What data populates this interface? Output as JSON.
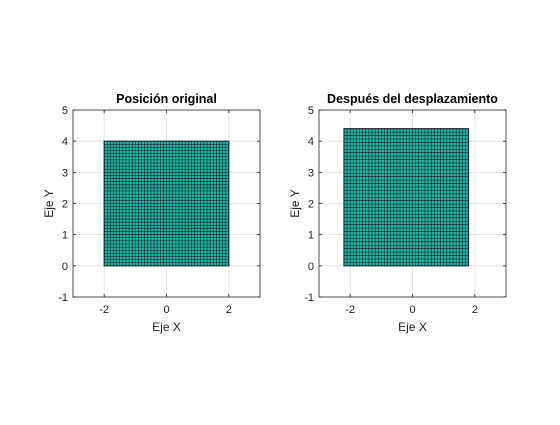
{
  "colors": {
    "background": "#ffffff",
    "axis": "#262626",
    "grid": "#dfdfdf",
    "patch_fill": "#22b3a6",
    "patch_edge": "#0d1a1a"
  },
  "chart_data": [
    {
      "type": "patch-mesh",
      "title": "Posición original",
      "xlabel": "Eje X",
      "ylabel": "Eje Y",
      "xlim": [
        -3,
        3
      ],
      "ylim": [
        -1,
        5
      ],
      "xticks": [
        "-2",
        "0",
        "2"
      ],
      "xtick_values": [
        -2,
        0,
        2
      ],
      "yticks": [
        "-1",
        "0",
        "1",
        "2",
        "3",
        "4",
        "5"
      ],
      "ytick_values": [
        -1,
        0,
        1,
        2,
        3,
        4,
        5
      ],
      "grid": true,
      "patch": {
        "x_min": -2,
        "x_max": 2,
        "y_min": 0,
        "y_max": 4,
        "nx": 40,
        "ny": 40
      }
    },
    {
      "type": "patch-mesh",
      "title": "Después del desplazamiento",
      "xlabel": "Eje X",
      "ylabel": "Eje Y",
      "xlim": [
        -3,
        3
      ],
      "ylim": [
        -1,
        5
      ],
      "xticks": [
        "-2",
        "0",
        "2"
      ],
      "xtick_values": [
        -2,
        0,
        2
      ],
      "yticks": [
        "-1",
        "0",
        "1",
        "2",
        "3",
        "4",
        "5"
      ],
      "ytick_values": [
        -1,
        0,
        1,
        2,
        3,
        4,
        5
      ],
      "grid": true,
      "patch": {
        "x_min": -2.2,
        "x_max": 1.8,
        "y_min": 0,
        "y_max": 4.4,
        "nx": 40,
        "ny": 40
      }
    }
  ]
}
